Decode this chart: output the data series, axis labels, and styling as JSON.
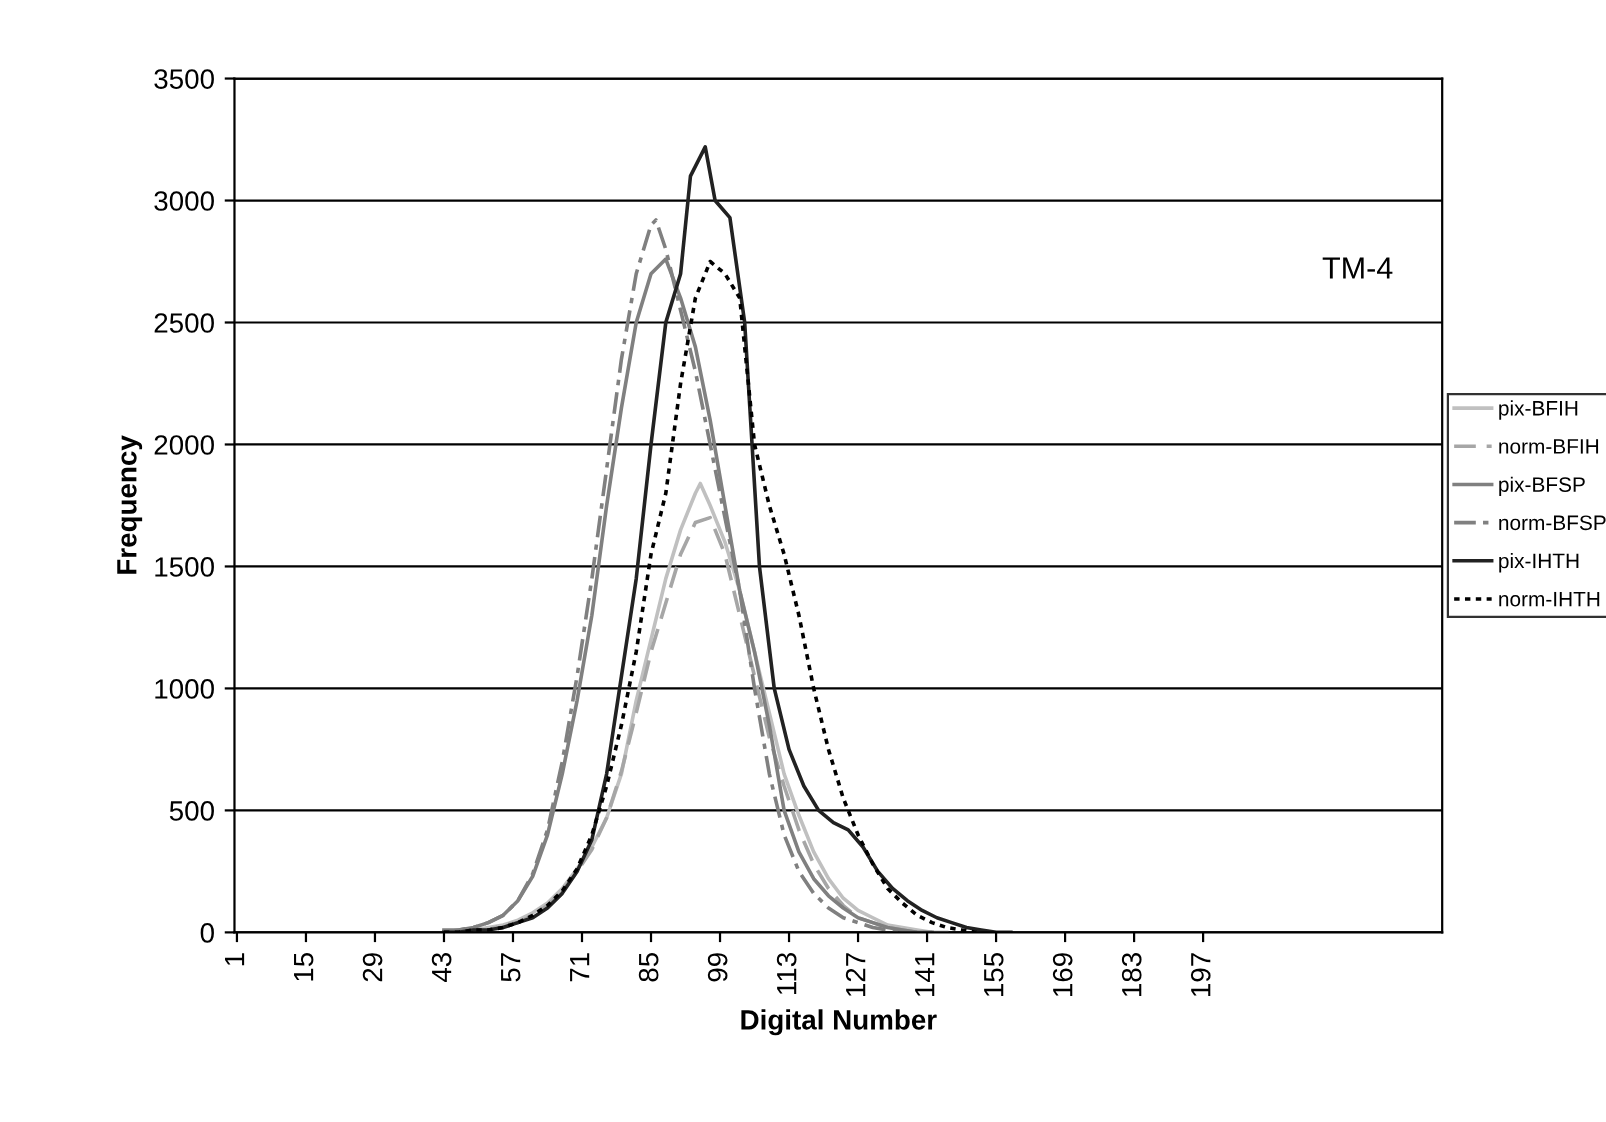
{
  "chart_data": {
    "type": "line",
    "xlabel": "Digital Number",
    "ylabel": "Frequency",
    "annotations": [
      "TM-4"
    ],
    "xlim": [
      0.5,
      245.5
    ],
    "xticks": [
      1,
      15,
      29,
      43,
      57,
      71,
      85,
      99,
      113,
      127,
      141,
      155,
      169,
      183,
      197
    ],
    "ylim": [
      0,
      3500
    ],
    "yticks": [
      0,
      500,
      1000,
      1500,
      2000,
      2500,
      3000,
      3500
    ],
    "grid": "y",
    "legend": "right",
    "marker": "none",
    "series": [
      {
        "name": "pix-BFIH",
        "color": "#c0c0c0",
        "line_style": "solid",
        "x": [
          43,
          46,
          49,
          52,
          55,
          58,
          61,
          64,
          67,
          70,
          73,
          76,
          79,
          82,
          85,
          88,
          91,
          94,
          95,
          97,
          100,
          103,
          106,
          109,
          112,
          115,
          118,
          121,
          124,
          127,
          130,
          133,
          136,
          139,
          142,
          145
        ],
        "values": [
          0,
          0,
          10,
          20,
          30,
          50,
          80,
          120,
          180,
          260,
          350,
          470,
          650,
          950,
          1200,
          1450,
          1650,
          1800,
          1840,
          1750,
          1600,
          1400,
          1150,
          900,
          650,
          480,
          330,
          220,
          140,
          90,
          60,
          30,
          20,
          10,
          0,
          0
        ]
      },
      {
        "name": "norm-BFIH",
        "color": "#a6a6a6",
        "line_style": "dashed",
        "x": [
          43,
          46,
          49,
          52,
          55,
          58,
          61,
          64,
          67,
          70,
          73,
          76,
          79,
          82,
          85,
          88,
          91,
          94,
          97,
          100,
          103,
          106,
          109,
          112,
          115,
          118,
          121,
          124,
          127,
          130,
          133,
          136,
          139,
          142
        ],
        "values": [
          0,
          0,
          10,
          10,
          30,
          40,
          70,
          110,
          170,
          250,
          340,
          470,
          660,
          900,
          1150,
          1350,
          1550,
          1680,
          1700,
          1550,
          1300,
          1050,
          800,
          600,
          420,
          280,
          180,
          110,
          60,
          40,
          20,
          10,
          0,
          0
        ]
      },
      {
        "name": "pix-BFSP",
        "color": "#808080",
        "line_style": "solid",
        "x": [
          43,
          46,
          49,
          52,
          55,
          58,
          61,
          64,
          67,
          70,
          73,
          76,
          79,
          82,
          85,
          88,
          91,
          94,
          97,
          100,
          103,
          106,
          109,
          112,
          115,
          118,
          121,
          124,
          127,
          130,
          133,
          136,
          139,
          142
        ],
        "values": [
          10,
          10,
          20,
          40,
          70,
          130,
          230,
          400,
          650,
          950,
          1300,
          1750,
          2150,
          2500,
          2700,
          2760,
          2600,
          2400,
          2100,
          1750,
          1400,
          1150,
          850,
          500,
          330,
          220,
          150,
          100,
          60,
          40,
          20,
          10,
          0,
          0
        ]
      },
      {
        "name": "norm-BFSP",
        "color": "#808080",
        "line_style": "dashdot",
        "x": [
          43,
          46,
          49,
          52,
          55,
          58,
          61,
          64,
          67,
          70,
          73,
          76,
          79,
          82,
          85,
          86,
          88,
          91,
          94,
          97,
          100,
          103,
          106,
          109,
          112,
          115,
          118,
          121,
          124,
          127,
          130,
          133,
          136,
          139
        ],
        "values": [
          0,
          10,
          20,
          40,
          70,
          130,
          240,
          420,
          700,
          1050,
          1450,
          1900,
          2350,
          2700,
          2900,
          2920,
          2800,
          2550,
          2300,
          2000,
          1700,
          1400,
          1000,
          650,
          400,
          250,
          160,
          100,
          60,
          40,
          20,
          10,
          0,
          0
        ]
      },
      {
        "name": "pix-IHTH",
        "color": "#222222",
        "line_style": "solid",
        "x": [
          43,
          46,
          49,
          52,
          55,
          58,
          61,
          64,
          67,
          70,
          73,
          76,
          79,
          82,
          85,
          88,
          91,
          93,
          96,
          98,
          101,
          104,
          107,
          110,
          113,
          116,
          119,
          122,
          125,
          128,
          131,
          134,
          137,
          140,
          143,
          146,
          149,
          152,
          155,
          158
        ],
        "values": [
          0,
          0,
          10,
          10,
          20,
          40,
          60,
          100,
          160,
          250,
          380,
          650,
          1050,
          1450,
          2000,
          2500,
          2700,
          3100,
          3220,
          3000,
          2930,
          2500,
          1500,
          1000,
          750,
          600,
          500,
          450,
          420,
          350,
          250,
          180,
          130,
          90,
          60,
          40,
          20,
          10,
          0,
          0
        ]
      },
      {
        "name": "norm-IHTH",
        "color": "#000000",
        "line_style": "dotted",
        "x": [
          43,
          46,
          49,
          52,
          55,
          58,
          61,
          64,
          67,
          70,
          73,
          76,
          79,
          82,
          85,
          88,
          91,
          94,
          97,
          100,
          103,
          106,
          109,
          112,
          115,
          118,
          121,
          124,
          127,
          130,
          133,
          136,
          139,
          142,
          145,
          148,
          151
        ],
        "values": [
          0,
          0,
          10,
          10,
          20,
          40,
          70,
          110,
          170,
          260,
          400,
          600,
          850,
          1150,
          1550,
          1800,
          2250,
          2600,
          2750,
          2700,
          2600,
          2000,
          1750,
          1550,
          1300,
          1000,
          750,
          550,
          400,
          280,
          180,
          120,
          70,
          40,
          20,
          10,
          0
        ]
      }
    ]
  }
}
